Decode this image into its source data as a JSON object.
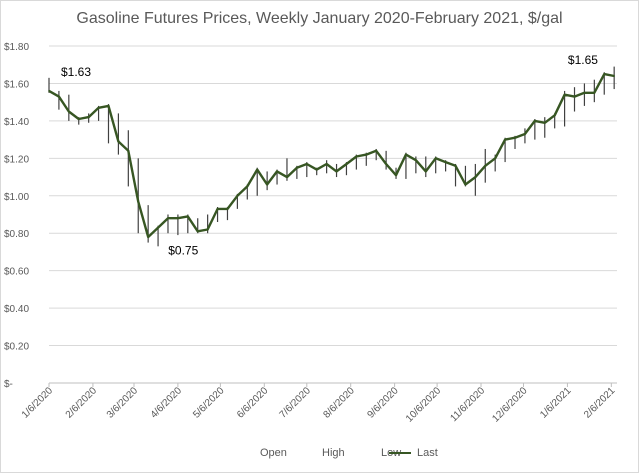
{
  "chart_data": {
    "type": "line",
    "title": "Gasoline Futures Prices, Weekly January 2020-February 2021, $/gal",
    "xlabel": "",
    "ylabel": "",
    "ylim": [
      0,
      1.8
    ],
    "y_ticks": [
      0,
      0.2,
      0.4,
      0.6,
      0.8,
      1.0,
      1.2,
      1.4,
      1.6,
      1.8
    ],
    "y_tick_labels": [
      "$-",
      "$0.20",
      "$0.40",
      "$0.60",
      "$0.80",
      "$1.00",
      "$1.20",
      "$1.40",
      "$1.60",
      "$1.80"
    ],
    "x_tick_labels": [
      "1/6/2020",
      "2/6/2020",
      "3/6/2020",
      "4/6/2020",
      "5/6/2020",
      "6/6/2020",
      "7/6/2020",
      "8/6/2020",
      "9/6/2020",
      "10/6/2020",
      "11/6/2020",
      "12/6/2020",
      "1/6/2021",
      "2/6/2021"
    ],
    "x_ticks": [
      "2020-01-06",
      "2020-02-06",
      "2020-03-06",
      "2020-04-06",
      "2020-05-06",
      "2020-06-06",
      "2020-07-06",
      "2020-08-06",
      "2020-09-06",
      "2020-10-06",
      "2020-11-06",
      "2020-12-06",
      "2021-01-06",
      "2021-02-06"
    ],
    "x_range": [
      "2020-01-06",
      "2021-02-10"
    ],
    "grid": true,
    "legend_position": "bottom",
    "legend": [
      "Open",
      "High",
      "Low",
      "Last"
    ],
    "colors": {
      "last": "#375623",
      "high_low": "#404040",
      "grid": "#d9d9d9",
      "axis_text": "#595959"
    },
    "annotations": [
      {
        "text": "$1.63",
        "x": "2020-01-06",
        "y": 1.63
      },
      {
        "text": "$0.75",
        "x": "2020-04-02",
        "y": 0.75
      },
      {
        "text": "$1.65",
        "x": "2021-02-05",
        "y": 1.65
      }
    ],
    "series": [
      {
        "name": "Last",
        "x": [
          "2020-01-06",
          "2020-01-13",
          "2020-01-20",
          "2020-01-27",
          "2020-02-03",
          "2020-02-10",
          "2020-02-17",
          "2020-02-24",
          "2020-03-02",
          "2020-03-09",
          "2020-03-16",
          "2020-03-23",
          "2020-03-30",
          "2020-04-06",
          "2020-04-13",
          "2020-04-20",
          "2020-04-27",
          "2020-05-04",
          "2020-05-11",
          "2020-05-18",
          "2020-05-25",
          "2020-06-01",
          "2020-06-08",
          "2020-06-15",
          "2020-06-22",
          "2020-06-29",
          "2020-07-06",
          "2020-07-13",
          "2020-07-20",
          "2020-07-27",
          "2020-08-03",
          "2020-08-10",
          "2020-08-17",
          "2020-08-24",
          "2020-08-31",
          "2020-09-07",
          "2020-09-14",
          "2020-09-21",
          "2020-09-28",
          "2020-10-05",
          "2020-10-12",
          "2020-10-19",
          "2020-10-26",
          "2020-11-02",
          "2020-11-09",
          "2020-11-16",
          "2020-11-23",
          "2020-11-30",
          "2020-12-07",
          "2020-12-14",
          "2020-12-21",
          "2020-12-28",
          "2021-01-04",
          "2021-01-11",
          "2021-01-18",
          "2021-01-25",
          "2021-02-01",
          "2021-02-08"
        ],
        "values": [
          1.56,
          1.53,
          1.45,
          1.41,
          1.42,
          1.47,
          1.48,
          1.29,
          1.24,
          0.97,
          0.78,
          0.83,
          0.88,
          0.88,
          0.89,
          0.81,
          0.82,
          0.93,
          0.93,
          1.0,
          1.05,
          1.14,
          1.06,
          1.13,
          1.1,
          1.15,
          1.17,
          1.14,
          1.17,
          1.13,
          1.17,
          1.21,
          1.22,
          1.24,
          1.17,
          1.11,
          1.22,
          1.19,
          1.13,
          1.2,
          1.18,
          1.16,
          1.06,
          1.1,
          1.16,
          1.2,
          1.3,
          1.31,
          1.33,
          1.4,
          1.39,
          1.43,
          1.54,
          1.53,
          1.55,
          1.55,
          1.65,
          1.64
        ]
      },
      {
        "name": "High",
        "values": [
          1.63,
          1.56,
          1.54,
          1.42,
          1.44,
          1.48,
          1.49,
          1.44,
          1.35,
          1.2,
          0.95,
          0.84,
          0.9,
          0.9,
          0.9,
          0.88,
          0.9,
          0.94,
          0.94,
          1.01,
          1.06,
          1.15,
          1.13,
          1.14,
          1.2,
          1.16,
          1.18,
          1.15,
          1.19,
          1.17,
          1.18,
          1.22,
          1.23,
          1.25,
          1.24,
          1.15,
          1.23,
          1.21,
          1.21,
          1.21,
          1.19,
          1.17,
          1.16,
          1.17,
          1.25,
          1.22,
          1.31,
          1.32,
          1.36,
          1.41,
          1.42,
          1.44,
          1.56,
          1.58,
          1.6,
          1.62,
          1.66,
          1.69
        ]
      },
      {
        "name": "Low",
        "values": [
          1.55,
          1.46,
          1.4,
          1.38,
          1.39,
          1.4,
          1.28,
          1.22,
          1.05,
          0.8,
          0.75,
          0.73,
          0.8,
          0.79,
          0.8,
          0.8,
          0.8,
          0.86,
          0.87,
          0.93,
          0.98,
          1.0,
          1.03,
          1.06,
          1.08,
          1.09,
          1.1,
          1.11,
          1.12,
          1.1,
          1.11,
          1.14,
          1.16,
          1.19,
          1.14,
          1.09,
          1.09,
          1.12,
          1.1,
          1.12,
          1.13,
          1.05,
          1.05,
          1.0,
          1.07,
          1.13,
          1.18,
          1.25,
          1.28,
          1.3,
          1.31,
          1.36,
          1.37,
          1.45,
          1.48,
          1.5,
          1.54,
          1.57
        ]
      }
    ]
  }
}
